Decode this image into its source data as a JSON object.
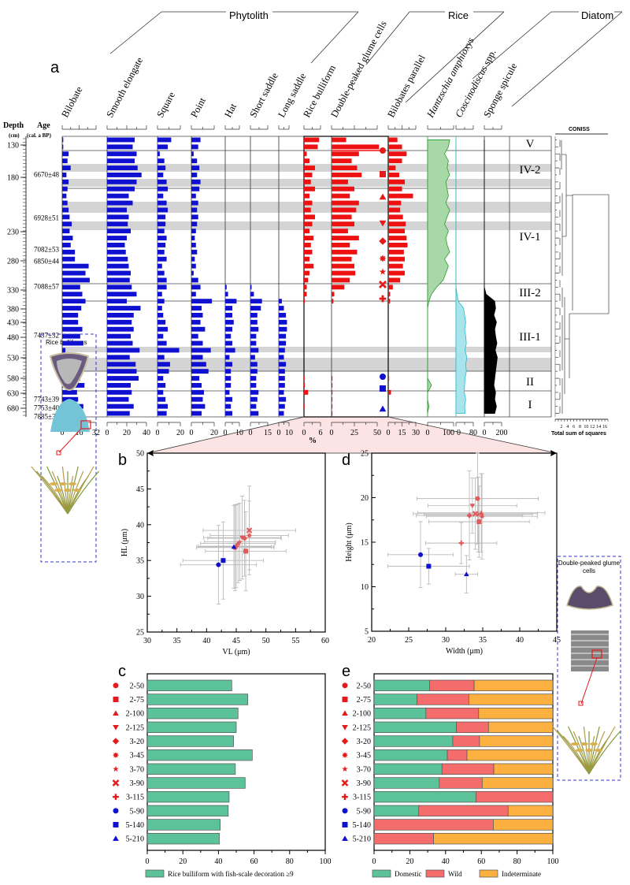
{
  "panel_labels": {
    "a": "a",
    "b": "b",
    "c": "c",
    "d": "d",
    "e": "e"
  },
  "group_headers": {
    "phytolith": "Phytolith",
    "rice": "Rice",
    "diatom": "Diatom"
  },
  "axis_headers": {
    "depth": "Depth",
    "depth_unit": "(cm)",
    "age": "Age",
    "age_unit": "(cal. a BP)",
    "percent": "%",
    "coniss": "CONISS",
    "coniss_axis": "Total sum of squares"
  },
  "inset_labels": {
    "left": "Rice bulliforms",
    "right": "Double-peaked glume cells"
  },
  "colors": {
    "phytolith": "#1010d0",
    "rice": "#ee1111",
    "hantzschia": "#a8d8a8",
    "coscinodiscus": "#a8e4ec",
    "sponge": "#000000",
    "band": "#d4d4d4",
    "pink": "#fde4e4",
    "domestic": "#5cc29a",
    "wild": "#f56c6c",
    "indeterminate": "#fbb040",
    "blue_marker": "#1010d0",
    "red_marker": "#e41a1c"
  },
  "chart_data": [
    {
      "type": "bar",
      "title": "a",
      "orientation": "horizontal-stratigraphic",
      "depth_ticks": [
        "130",
        "180",
        "230",
        "280",
        "330",
        "380",
        "430",
        "480",
        "530",
        "580",
        "630",
        "680"
      ],
      "ages": [
        "6670±48",
        "6928±51",
        "7082±53",
        "6850±44",
        "7088±57",
        "7437±32",
        "7743±39",
        "7753±40",
        "7885±36"
      ],
      "zones": [
        "V",
        "IV-2",
        "IV-1",
        "III-2",
        "III-1",
        "II",
        "I"
      ],
      "coniss_ticks": [
        "2",
        "4",
        "6",
        "8",
        "10",
        "12",
        "14",
        "16"
      ],
      "x_unit": "%",
      "series": [
        {
          "name": "Bilobate",
          "group": "phytolith",
          "ticks": [
            "0",
            "16",
            "32"
          ],
          "values": [
            1,
            1,
            6,
            5,
            8,
            4,
            6,
            5,
            4,
            5,
            6,
            7,
            9,
            7,
            10,
            8,
            12,
            12,
            25,
            22,
            26,
            17,
            19,
            22,
            18,
            15,
            15,
            19,
            17,
            20,
            3,
            18,
            14,
            14,
            17,
            21,
            14,
            15,
            20,
            15
          ]
        },
        {
          "name": "Smooth elongate",
          "group": "phytolith",
          "ticks": [
            "0",
            "20",
            "40"
          ],
          "values": [
            28,
            26,
            30,
            28,
            31,
            35,
            30,
            28,
            22,
            26,
            20,
            22,
            21,
            24,
            20,
            18,
            19,
            21,
            22,
            24,
            23,
            25,
            30,
            20,
            34,
            27,
            25,
            27,
            24,
            26,
            33,
            23,
            29,
            30,
            32,
            24,
            25,
            22,
            27,
            23
          ]
        },
        {
          "name": "Square",
          "group": "phytolith",
          "ticks": [
            "0",
            "20"
          ],
          "values": [
            12,
            9,
            2,
            6,
            7,
            5,
            8,
            9,
            5,
            8,
            9,
            7,
            7,
            6,
            8,
            7,
            6,
            8,
            4,
            6,
            8,
            8,
            4,
            6,
            4,
            5,
            7,
            9,
            5,
            8,
            19,
            6,
            11,
            10,
            5,
            7,
            5,
            7,
            9,
            8
          ]
        },
        {
          "name": "Point",
          "group": "phytolith",
          "ticks": [
            "0",
            "20"
          ],
          "values": [
            8,
            6,
            2,
            5,
            7,
            5,
            8,
            7,
            4,
            6,
            5,
            6,
            5,
            4,
            3,
            4,
            5,
            3,
            4,
            2,
            6,
            8,
            4,
            18,
            9,
            10,
            8,
            12,
            6,
            10,
            17,
            10,
            13,
            15,
            7,
            9,
            11,
            10,
            12,
            9
          ]
        },
        {
          "name": "Hat",
          "group": "phytolith",
          "ticks": [
            "0",
            "10"
          ],
          "values": [
            0,
            0,
            0,
            0,
            0,
            0,
            0,
            0,
            0,
            0,
            0,
            0,
            0,
            0,
            0,
            0,
            0,
            0,
            0,
            0,
            0,
            1,
            2,
            8,
            5,
            5,
            6,
            5,
            4,
            5,
            7,
            3,
            5,
            4,
            4,
            4,
            3,
            5,
            4,
            5
          ]
        },
        {
          "name": "Short saddle",
          "group": "phytolith",
          "ticks": [
            "0",
            "15"
          ],
          "values": [
            0,
            0,
            0,
            0,
            0,
            0,
            0,
            0,
            0,
            0,
            0,
            0,
            0,
            0,
            0,
            0,
            0,
            0,
            0,
            0,
            0,
            1,
            3,
            10,
            9,
            6,
            6,
            7,
            5,
            5,
            7,
            4,
            6,
            6,
            5,
            5,
            7,
            6,
            5,
            7
          ]
        },
        {
          "name": "Long saddle",
          "group": "phytolith",
          "ticks": [
            "0",
            "10"
          ],
          "values": [
            0,
            0,
            0,
            0,
            0,
            0,
            0,
            0,
            0,
            0,
            0,
            0,
            0,
            0,
            0,
            0,
            0,
            0,
            0,
            0,
            0,
            0,
            0,
            3,
            5,
            7,
            8,
            8,
            7,
            7,
            6,
            5,
            7,
            6,
            6,
            6,
            5,
            7,
            6,
            5
          ]
        },
        {
          "name": "Rice bulliform",
          "group": "rice",
          "ticks": [
            "0",
            "6"
          ],
          "values": [
            5.5,
            5,
            1,
            2,
            4,
            3,
            2.5,
            4,
            2,
            3,
            2.5,
            4,
            3,
            2,
            3.5,
            2.5,
            3,
            2,
            3.5,
            2,
            1.5,
            1,
            1,
            0.3,
            0,
            0,
            0,
            0,
            0,
            0,
            0,
            0,
            0,
            0,
            0.2,
            0.3,
            1.5,
            0,
            0.1,
            0
          ]
        },
        {
          "name": "Double-peaked glume cells",
          "group": "rice",
          "ticks": [
            "0",
            "25",
            "50"
          ],
          "values": [
            16,
            52,
            30,
            22,
            28,
            33,
            18,
            25,
            20,
            30,
            27,
            22,
            25,
            18,
            30,
            20,
            28,
            22,
            25,
            26,
            20,
            14,
            3,
            2,
            0,
            0,
            0,
            0,
            0,
            0,
            0,
            0,
            0,
            0,
            1,
            1,
            1,
            1,
            1,
            1
          ]
        },
        {
          "name": "Bilobates parallel",
          "group": "rice",
          "ticks": [
            "0",
            "15",
            "30"
          ],
          "values": [
            10,
            15,
            20,
            15,
            8,
            12,
            18,
            15,
            27,
            14,
            13,
            16,
            19,
            18,
            20,
            21,
            17,
            18,
            16,
            18,
            13,
            5,
            2,
            2,
            0,
            0,
            0,
            0,
            0,
            0,
            0,
            0,
            0,
            0,
            1,
            0.5,
            3,
            0.5,
            0.5,
            0.5
          ]
        },
        {
          "name": "Hantzschia amphioxys",
          "group": "diatom",
          "ticks": [
            "0",
            "100"
          ],
          "values": [
            85,
            80,
            65,
            80,
            75,
            85,
            70,
            75,
            80,
            70,
            85,
            75,
            65,
            80,
            70,
            75,
            85,
            65,
            80,
            70,
            60,
            35,
            15,
            5,
            0,
            0,
            0,
            0,
            0,
            0,
            0,
            0,
            0,
            0,
            0,
            15,
            0,
            0,
            5,
            0
          ]
        },
        {
          "name": "Coscinodiscus spp.",
          "group": "diatom",
          "ticks": [
            "0",
            "80"
          ],
          "values": [
            0,
            0,
            0,
            0,
            0,
            0,
            0,
            0,
            0,
            0,
            0,
            0,
            0,
            0,
            0,
            0,
            0,
            0,
            0,
            0,
            0,
            0,
            5,
            10,
            35,
            40,
            45,
            40,
            45,
            48,
            42,
            50,
            45,
            48,
            42,
            40,
            38,
            45,
            40,
            42
          ]
        },
        {
          "name": "Sponge spicule",
          "group": "other",
          "ticks": [
            "0",
            "200"
          ],
          "values": [
            0,
            0,
            0,
            0,
            0,
            0,
            0,
            0,
            0,
            0,
            0,
            0,
            0,
            0,
            0,
            0,
            0,
            0,
            0,
            0,
            0,
            0,
            20,
            120,
            130,
            110,
            140,
            120,
            130,
            145,
            125,
            150,
            140,
            130,
            120,
            110,
            130,
            120,
            140,
            120
          ]
        }
      ]
    },
    {
      "type": "scatter",
      "title": "b",
      "xlabel": "VL (μm)",
      "ylabel": "HL (μm)",
      "xlim": [
        30,
        60
      ],
      "ylim": [
        25,
        50
      ],
      "xticks": [
        "30",
        "35",
        "40",
        "45",
        "50",
        "55",
        "60"
      ],
      "yticks": [
        "25",
        "30",
        "35",
        "40",
        "45",
        "50"
      ],
      "points": [
        {
          "sample": "2-50",
          "x": 44.8,
          "y": 36.8,
          "xerr": 6.5,
          "yerr": 6
        },
        {
          "sample": "2-75",
          "x": 46.6,
          "y": 36.3,
          "xerr": 6.8,
          "yerr": 5.5
        },
        {
          "sample": "2-100",
          "x": 45.3,
          "y": 37.4,
          "xerr": 6.3,
          "yerr": 5.5
        },
        {
          "sample": "2-125",
          "x": 46.0,
          "y": 38.2,
          "xerr": 6.5,
          "yerr": 5.8
        },
        {
          "sample": "3-20",
          "x": 46.4,
          "y": 38.1,
          "xerr": 6.2,
          "yerr": 5.3
        },
        {
          "sample": "3-45",
          "x": 47.2,
          "y": 38.5,
          "xerr": 6.6,
          "yerr": 4.8
        },
        {
          "sample": "3-70",
          "x": 45.6,
          "y": 37.6,
          "xerr": 6.0,
          "yerr": 5.4
        },
        {
          "sample": "3-90",
          "x": 47.2,
          "y": 39.2,
          "xerr": 7.8,
          "yerr": 6.2
        },
        {
          "sample": "3-115",
          "x": 45.0,
          "y": 37.0,
          "xerr": 6.4,
          "yerr": 5.8
        },
        {
          "sample": "5-90",
          "x": 42.0,
          "y": 34.4,
          "xerr": 6.4,
          "yerr": 5.5
        },
        {
          "sample": "5-140",
          "x": 42.8,
          "y": 35.0,
          "xerr": 6.8,
          "yerr": 5.4
        },
        {
          "sample": "5-210",
          "x": 44.6,
          "y": 36.9,
          "xerr": 6.3,
          "yerr": 5.8
        }
      ]
    },
    {
      "type": "scatter",
      "title": "d",
      "xlabel": "Width (μm)",
      "ylabel": "Height (μm)",
      "xlim": [
        20,
        45
      ],
      "ylim": [
        5,
        25
      ],
      "xticks": [
        "20",
        "25",
        "30",
        "35",
        "40",
        "45"
      ],
      "yticks": [
        "5",
        "10",
        "15",
        "20",
        "25"
      ],
      "points": [
        {
          "sample": "2-50",
          "x": 34.3,
          "y": 19.9,
          "xerr": 8.2,
          "yerr": 5.1
        },
        {
          "sample": "2-75",
          "x": 34.5,
          "y": 17.3,
          "xerr": 6.8,
          "yerr": 4.0
        },
        {
          "sample": "2-100",
          "x": 34.8,
          "y": 18.3,
          "xerr": 8.6,
          "yerr": 4.4
        },
        {
          "sample": "2-125",
          "x": 33.6,
          "y": 19.1,
          "xerr": 6.0,
          "yerr": 3.1
        },
        {
          "sample": "3-20",
          "x": 33.2,
          "y": 18.0,
          "xerr": 7.2,
          "yerr": 5.0
        },
        {
          "sample": "3-45",
          "x": 34.9,
          "y": 17.9,
          "xerr": 7.5,
          "yerr": 4.8
        },
        {
          "sample": "3-70",
          "x": 34.4,
          "y": 18.1,
          "xerr": 7.3,
          "yerr": 4.2
        },
        {
          "sample": "3-90",
          "x": 34.0,
          "y": 18.2,
          "xerr": 8.4,
          "yerr": 4.0
        },
        {
          "sample": "3-115",
          "x": 32.1,
          "y": 14.9,
          "xerr": 4.8,
          "yerr": 2.3
        },
        {
          "sample": "5-90",
          "x": 26.6,
          "y": 13.6,
          "xerr": 4.4,
          "yerr": 3.7
        },
        {
          "sample": "5-140",
          "x": 27.7,
          "y": 12.3,
          "xerr": 5.5,
          "yerr": 2.0
        },
        {
          "sample": "5-210",
          "x": 32.8,
          "y": 11.4,
          "xerr": 1.5,
          "yerr": 2.1
        }
      ]
    },
    {
      "type": "bar",
      "title": "c",
      "categories": [
        "2-50",
        "2-75",
        "2-100",
        "2-125",
        "3-20",
        "3-45",
        "3-70",
        "3-90",
        "3-115",
        "5-90",
        "5-140",
        "5-210"
      ],
      "series": [
        {
          "name": "Rice bulliform with fish-scale decoration ≥9",
          "values": [
            47.5,
            56.5,
            51,
            50,
            48.5,
            59,
            49.5,
            55,
            46,
            45.5,
            41,
            40.5
          ]
        }
      ],
      "xlim": [
        0,
        100
      ],
      "xticks": [
        "0",
        "20",
        "40",
        "60",
        "80",
        "100"
      ],
      "legend": "bottom"
    },
    {
      "type": "bar",
      "title": "e",
      "stacked": true,
      "categories": [
        "2-50",
        "2-75",
        "2-100",
        "2-125",
        "3-20",
        "3-45",
        "3-70",
        "3-90",
        "3-115",
        "5-90",
        "5-140",
        "5-210"
      ],
      "series": [
        {
          "name": "Domestic",
          "values": [
            31,
            24,
            29,
            46,
            44,
            41,
            38,
            36.5,
            57,
            25,
            0,
            0
          ]
        },
        {
          "name": "Wild",
          "values": [
            25,
            29,
            29.5,
            18,
            15,
            11,
            29,
            24,
            43,
            50,
            66.7,
            33.3
          ]
        },
        {
          "name": "Indeterminate",
          "values": [
            44,
            47,
            41.5,
            36,
            41,
            48,
            33,
            39.5,
            0,
            25,
            33.3,
            66.7
          ]
        }
      ],
      "xlim": [
        0,
        100
      ],
      "xticks": [
        "0",
        "20",
        "40",
        "60",
        "80",
        "100"
      ],
      "legend": "bottom"
    }
  ],
  "sample_markers": [
    {
      "sample": "2-50",
      "shape": "circle",
      "color": "red"
    },
    {
      "sample": "2-75",
      "shape": "square",
      "color": "red"
    },
    {
      "sample": "2-100",
      "shape": "triangle-up",
      "color": "red"
    },
    {
      "sample": "2-125",
      "shape": "triangle-down",
      "color": "red"
    },
    {
      "sample": "3-20",
      "shape": "diamond",
      "color": "red"
    },
    {
      "sample": "3-45",
      "shape": "asterisk",
      "color": "red"
    },
    {
      "sample": "3-70",
      "shape": "star",
      "color": "red"
    },
    {
      "sample": "3-90",
      "shape": "cross-x",
      "color": "red"
    },
    {
      "sample": "3-115",
      "shape": "plus",
      "color": "red"
    },
    {
      "sample": "5-90",
      "shape": "circle",
      "color": "blue"
    },
    {
      "sample": "5-140",
      "shape": "square",
      "color": "blue"
    },
    {
      "sample": "5-210",
      "shape": "triangle-up",
      "color": "blue"
    }
  ]
}
